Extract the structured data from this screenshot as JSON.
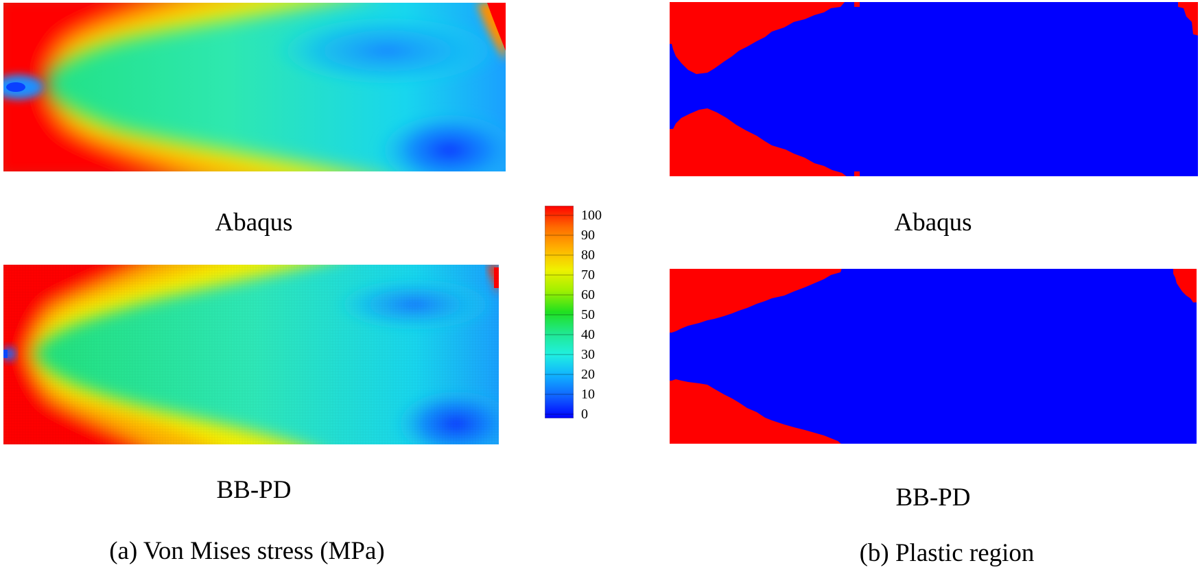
{
  "colors": {
    "high": "#ff0000",
    "low": "#0000ff",
    "background": "#ffffff"
  },
  "stress_panels": {
    "top_label": "Abaqus",
    "bottom_label": "BB-PD",
    "caption": "(a) Von Mises stress (MPa)"
  },
  "plastic_panels": {
    "top_label": "Abaqus",
    "bottom_label": "BB-PD",
    "caption": "(b) Plastic region"
  },
  "colorbar": {
    "min": 0,
    "max": 100,
    "ticks": [
      "100",
      "90",
      "80",
      "70",
      "60",
      "50",
      "40",
      "30",
      "20",
      "10",
      "0"
    ]
  }
}
